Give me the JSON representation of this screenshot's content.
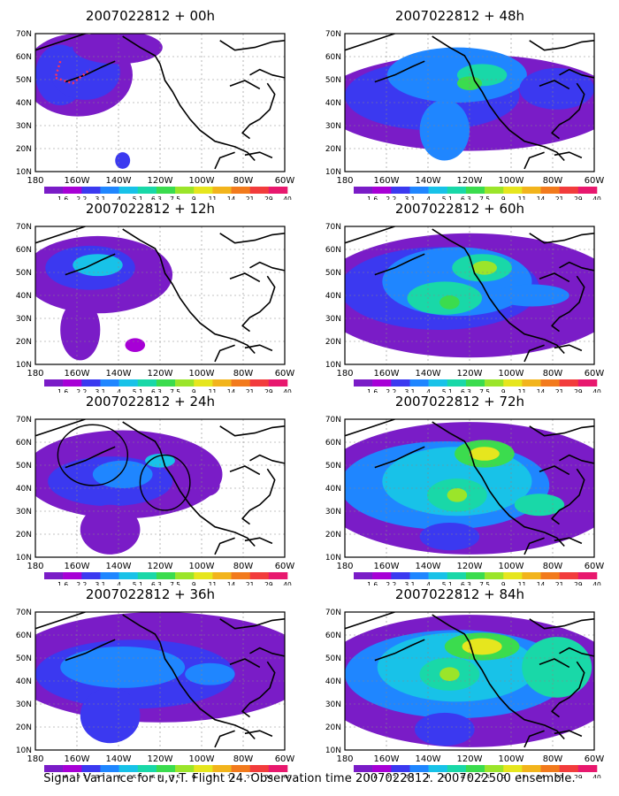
{
  "caption": "Signal Variance for u,v,T. Flight 24. Observation time 2007022812. 2007022500 ensemble.",
  "colors": [
    "#7a1cc7",
    "#a700d6",
    "#3b39f0",
    "#1f86ff",
    "#18c2e8",
    "#19d8a8",
    "#3bdc4e",
    "#9be52a",
    "#e6e61e",
    "#f2b41c",
    "#f27a1c",
    "#f23c3c",
    "#e8186e"
  ],
  "colorbar_labels": [
    "1.6",
    "2.2",
    "3.1",
    "4",
    "5.1",
    "6.3",
    "7.5",
    "9",
    "11",
    "14",
    "21",
    "29",
    "40"
  ],
  "x_tick_labels": [
    "180",
    "160W",
    "140W",
    "120W",
    "100W",
    "80W",
    "60W"
  ],
  "y_tick_labels": [
    "10N",
    "20N",
    "30N",
    "40N",
    "50N",
    "60N",
    "70N"
  ],
  "chart_data": [
    {
      "type": "heatmap",
      "title": "2007022812 + 00h",
      "xlim": [
        "180",
        "60W"
      ],
      "ylim": [
        "10N",
        "70N"
      ],
      "grid": true
    },
    {
      "type": "heatmap",
      "title": "2007022812 + 48h",
      "xlim": [
        "180",
        "60W"
      ],
      "ylim": [
        "10N",
        "70N"
      ],
      "grid": true
    },
    {
      "type": "heatmap",
      "title": "2007022812 + 12h",
      "xlim": [
        "180",
        "60W"
      ],
      "ylim": [
        "10N",
        "70N"
      ],
      "grid": true
    },
    {
      "type": "heatmap",
      "title": "2007022812 + 60h",
      "xlim": [
        "180",
        "60W"
      ],
      "ylim": [
        "10N",
        "70N"
      ],
      "grid": true
    },
    {
      "type": "heatmap",
      "title": "2007022812 + 24h",
      "xlim": [
        "180",
        "60W"
      ],
      "ylim": [
        "10N",
        "70N"
      ],
      "grid": true
    },
    {
      "type": "heatmap",
      "title": "2007022812 + 72h",
      "xlim": [
        "180",
        "60W"
      ],
      "ylim": [
        "10N",
        "70N"
      ],
      "grid": true
    },
    {
      "type": "heatmap",
      "title": "2007022812 + 36h",
      "xlim": [
        "180",
        "60W"
      ],
      "ylim": [
        "10N",
        "70N"
      ],
      "grid": true
    },
    {
      "type": "heatmap",
      "title": "2007022812 + 84h",
      "xlim": [
        "180",
        "60W"
      ],
      "ylim": [
        "10N",
        "70N"
      ],
      "grid": true
    }
  ]
}
